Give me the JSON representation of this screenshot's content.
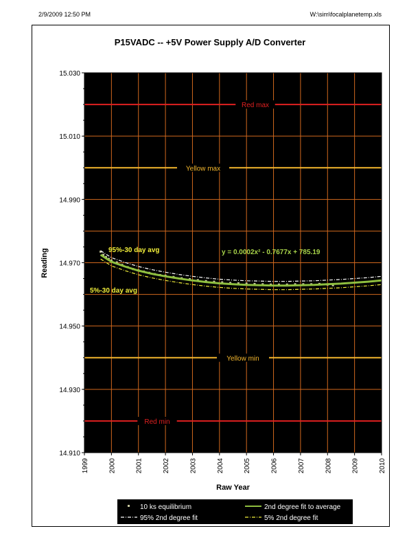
{
  "header": {
    "date_time": "2/9/2009 12:50 PM",
    "file_path": "W:\\sim\\focalplanetemp.xls"
  },
  "chart_data": {
    "type": "scatter",
    "title": "P15VADC -- +5V Power Supply A/D Converter",
    "xlabel": "Raw Year",
    "ylabel": "Reading",
    "xlim": [
      1999,
      2010
    ],
    "ylim": [
      14.91,
      15.03
    ],
    "x_ticks": [
      "1999",
      "2000",
      "2001",
      "2002",
      "2003",
      "2004",
      "2005",
      "2006",
      "2007",
      "2008",
      "2009",
      "2010"
    ],
    "y_ticks": [
      "14.910",
      "14.930",
      "14.950",
      "14.970",
      "14.990",
      "15.010",
      "15.030"
    ],
    "grid": true,
    "background": "#000000",
    "grid_color": "#d2691e",
    "limits": [
      {
        "name": "Red max",
        "value": 15.02,
        "color": "#e02020"
      },
      {
        "name": "Yellow max",
        "value": 15.0,
        "color": "#f5b82e"
      },
      {
        "name": "Yellow min",
        "value": 14.94,
        "color": "#f5b82e"
      },
      {
        "name": "Red min",
        "value": 14.92,
        "color": "#e02020"
      }
    ],
    "series": [
      {
        "name": "10 ks equilibrium",
        "color": "#c8c8a0",
        "points": [
          [
            1999.6,
            14.9735
          ],
          [
            1999.7,
            14.9725
          ],
          [
            1999.8,
            14.9718
          ],
          [
            1999.9,
            14.9712
          ],
          [
            2000.0,
            14.9707
          ],
          [
            2000.2,
            14.9701
          ],
          [
            2000.4,
            14.9693
          ],
          [
            2000.6,
            14.9686
          ],
          [
            2000.8,
            14.968
          ],
          [
            2001.0,
            14.9676
          ],
          [
            2001.2,
            14.9672
          ],
          [
            2001.4,
            14.9668
          ],
          [
            2001.6,
            14.9664
          ],
          [
            2001.8,
            14.9661
          ],
          [
            2002.0,
            14.9659
          ],
          [
            2002.3,
            14.9655
          ],
          [
            2002.6,
            14.9651
          ],
          [
            2002.9,
            14.9648
          ],
          [
            2003.2,
            14.9645
          ],
          [
            2003.5,
            14.9642
          ],
          [
            2003.8,
            14.964
          ],
          [
            2004.1,
            14.9638
          ],
          [
            2004.4,
            14.9636
          ],
          [
            2004.7,
            14.9635
          ],
          [
            2005.0,
            14.9634
          ],
          [
            2005.3,
            14.9633
          ],
          [
            2005.6,
            14.9632
          ],
          [
            2005.9,
            14.9631
          ],
          [
            2006.2,
            14.9631
          ],
          [
            2006.5,
            14.9631
          ],
          [
            2006.8,
            14.9632
          ],
          [
            2007.1,
            14.9632
          ],
          [
            2007.4,
            14.9632
          ],
          [
            2007.7,
            14.9633
          ],
          [
            2008.0,
            14.9631
          ],
          [
            2008.2,
            14.9629
          ]
        ]
      },
      {
        "name": "2nd degree fit to average",
        "color": "#8fbf3f",
        "equation": "y = 0.0002x² - 0.7677x + 785.19",
        "points": [
          [
            1999.6,
            14.9725
          ],
          [
            2000.0,
            14.9703
          ],
          [
            2000.5,
            14.9688
          ],
          [
            2001.0,
            14.9675
          ],
          [
            2001.5,
            14.9665
          ],
          [
            2002.0,
            14.9657
          ],
          [
            2002.5,
            14.965
          ],
          [
            2003.0,
            14.9644
          ],
          [
            2003.5,
            14.9639
          ],
          [
            2004.0,
            14.9635
          ],
          [
            2004.5,
            14.9632
          ],
          [
            2005.0,
            14.963
          ],
          [
            2005.5,
            14.9629
          ],
          [
            2006.0,
            14.9628
          ],
          [
            2006.5,
            14.9628
          ],
          [
            2007.0,
            14.9629
          ],
          [
            2007.5,
            14.963
          ],
          [
            2008.0,
            14.9632
          ],
          [
            2008.5,
            14.9634
          ],
          [
            2009.0,
            14.9637
          ],
          [
            2009.5,
            14.964
          ],
          [
            2010.0,
            14.9644
          ]
        ]
      },
      {
        "name": "95% 2nd degree fit",
        "color": "#ffffff",
        "label": "95%-30 day avg",
        "points": [
          [
            1999.6,
            14.9738
          ],
          [
            2000.0,
            14.9716
          ],
          [
            2000.5,
            14.9701
          ],
          [
            2001.0,
            14.9688
          ],
          [
            2001.5,
            14.9678
          ],
          [
            2002.0,
            14.967
          ],
          [
            2002.5,
            14.9663
          ],
          [
            2003.0,
            14.9657
          ],
          [
            2003.5,
            14.9652
          ],
          [
            2004.0,
            14.9648
          ],
          [
            2004.5,
            14.9645
          ],
          [
            2005.0,
            14.9643
          ],
          [
            2005.5,
            14.9642
          ],
          [
            2006.0,
            14.9641
          ],
          [
            2006.5,
            14.9641
          ],
          [
            2007.0,
            14.9642
          ],
          [
            2007.5,
            14.9643
          ],
          [
            2008.0,
            14.9645
          ],
          [
            2008.5,
            14.9647
          ],
          [
            2009.0,
            14.965
          ],
          [
            2009.5,
            14.9653
          ],
          [
            2010.0,
            14.9657
          ]
        ]
      },
      {
        "name": "5% 2nd degree fit",
        "color": "#f2ef3a",
        "label": "5%-30 day avg",
        "points": [
          [
            1999.6,
            14.9712
          ],
          [
            2000.0,
            14.969
          ],
          [
            2000.5,
            14.9675
          ],
          [
            2001.0,
            14.9662
          ],
          [
            2001.5,
            14.9652
          ],
          [
            2002.0,
            14.9644
          ],
          [
            2002.5,
            14.9637
          ],
          [
            2003.0,
            14.9631
          ],
          [
            2003.5,
            14.9626
          ],
          [
            2004.0,
            14.9622
          ],
          [
            2004.5,
            14.9619
          ],
          [
            2005.0,
            14.9617
          ],
          [
            2005.5,
            14.9616
          ],
          [
            2006.0,
            14.9615
          ],
          [
            2006.5,
            14.9615
          ],
          [
            2007.0,
            14.9616
          ],
          [
            2007.5,
            14.9617
          ],
          [
            2008.0,
            14.9619
          ],
          [
            2008.5,
            14.9621
          ],
          [
            2009.0,
            14.9624
          ],
          [
            2009.5,
            14.9627
          ],
          [
            2010.0,
            14.9631
          ]
        ]
      }
    ],
    "legend": {
      "placement": "bottom",
      "entries": [
        "10 ks equilibrium",
        "2nd degree fit to average",
        "95% 2nd degree fit",
        "5% 2nd degree fit"
      ]
    }
  }
}
